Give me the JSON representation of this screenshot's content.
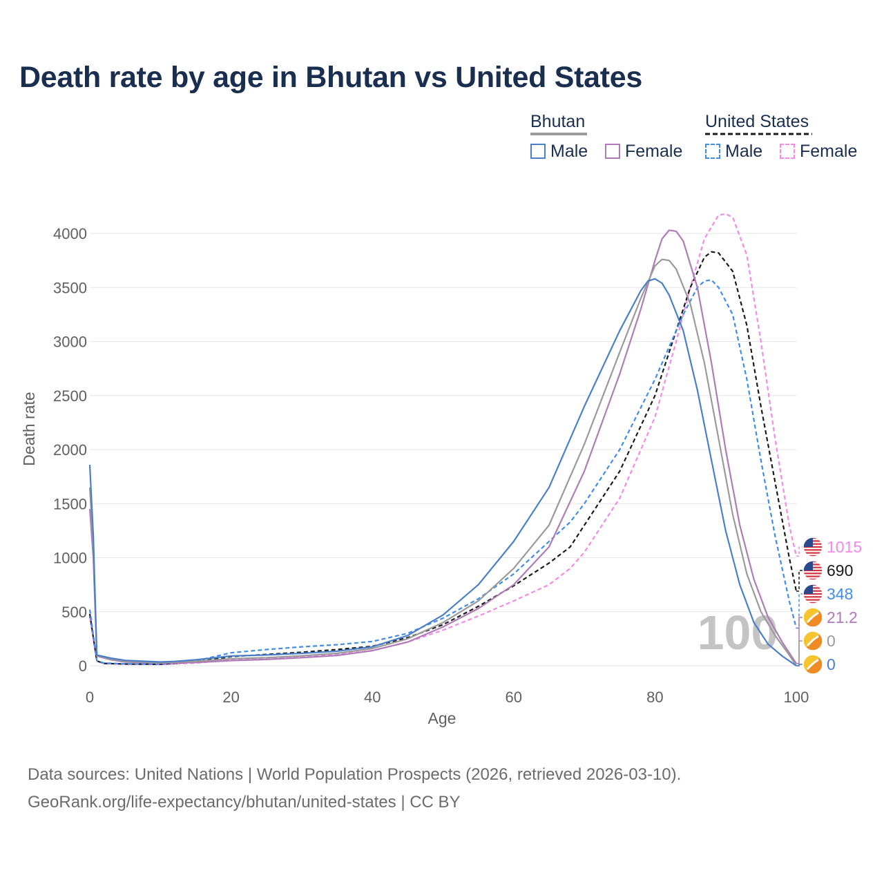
{
  "title": "Death rate by age in Bhutan vs United States",
  "legend": {
    "groups": [
      {
        "name": "Bhutan",
        "items": [
          {
            "label": "Male",
            "color": "#4a7fc8",
            "dashed": false
          },
          {
            "label": "Female",
            "color": "#b07ab8",
            "dashed": false
          }
        ]
      },
      {
        "name": "United States",
        "items": [
          {
            "label": "Male",
            "color": "#3f8cea",
            "dashed": true
          },
          {
            "label": "Female",
            "color": "#f28ae8",
            "dashed": true
          }
        ]
      }
    ]
  },
  "colors": {
    "bhutan_male": "#4a7fc8",
    "bhutan_female": "#b07ab8",
    "bhutan_total": "#9a9a9a",
    "us_male": "#3f8cea",
    "us_female": "#f28ae8",
    "us_total": "#1a1a1a",
    "title": "#1a2e50"
  },
  "icons": {
    "us_flag": "us-flag-icon",
    "bhutan_flag": "bhutan-flag-icon"
  },
  "watermark": "100",
  "source_line1": "Data sources: United Nations | World Population Prospects (2026, retrieved 2026-03-10).",
  "source_line2": "GeoRank.org/life-expectancy/bhutan/united-states | CC BY",
  "chart_data": {
    "type": "line",
    "title": "Death rate by age in Bhutan vs United States",
    "xlabel": "Age",
    "ylabel": "Death rate",
    "xlim": [
      0,
      100
    ],
    "ylim": [
      0,
      4000
    ],
    "xticks": [
      0,
      20,
      40,
      60,
      80,
      100
    ],
    "yticks": [
      0,
      500,
      1000,
      1500,
      2000,
      2500,
      3000,
      3500,
      4000
    ],
    "grid": true,
    "legend_position": "top-right",
    "series": [
      {
        "key": "us_female",
        "name": "United States Female",
        "color": "#f28ae8",
        "dashed": true,
        "flag": "us",
        "end_label": "1015",
        "points": [
          [
            0,
            450
          ],
          [
            1,
            45
          ],
          [
            2,
            20
          ],
          [
            5,
            15
          ],
          [
            10,
            12
          ],
          [
            15,
            25
          ],
          [
            20,
            55
          ],
          [
            25,
            68
          ],
          [
            30,
            85
          ],
          [
            35,
            105
          ],
          [
            40,
            140
          ],
          [
            45,
            220
          ],
          [
            50,
            330
          ],
          [
            55,
            460
          ],
          [
            60,
            600
          ],
          [
            65,
            750
          ],
          [
            68,
            900
          ],
          [
            70,
            1050
          ],
          [
            75,
            1550
          ],
          [
            80,
            2300
          ],
          [
            83,
            3000
          ],
          [
            85,
            3500
          ],
          [
            87,
            3950
          ],
          [
            89,
            4170
          ],
          [
            90,
            4180
          ],
          [
            91,
            4150
          ],
          [
            93,
            3800
          ],
          [
            95,
            3000
          ],
          [
            97,
            2100
          ],
          [
            99,
            1300
          ],
          [
            100,
            1015
          ]
        ]
      },
      {
        "key": "us_total",
        "name": "United States Total",
        "color": "#1a1a1a",
        "dashed": true,
        "flag": "us",
        "end_label": "690",
        "points": [
          [
            0,
            480
          ],
          [
            1,
            45
          ],
          [
            2,
            22
          ],
          [
            5,
            16
          ],
          [
            10,
            14
          ],
          [
            15,
            35
          ],
          [
            20,
            85
          ],
          [
            25,
            105
          ],
          [
            30,
            125
          ],
          [
            35,
            150
          ],
          [
            40,
            180
          ],
          [
            45,
            260
          ],
          [
            50,
            380
          ],
          [
            55,
            550
          ],
          [
            60,
            740
          ],
          [
            65,
            950
          ],
          [
            68,
            1100
          ],
          [
            70,
            1300
          ],
          [
            75,
            1800
          ],
          [
            80,
            2500
          ],
          [
            83,
            3100
          ],
          [
            85,
            3500
          ],
          [
            87,
            3780
          ],
          [
            88,
            3830
          ],
          [
            89,
            3820
          ],
          [
            91,
            3650
          ],
          [
            93,
            3150
          ],
          [
            95,
            2400
          ],
          [
            97,
            1700
          ],
          [
            99,
            1000
          ],
          [
            100,
            690
          ]
        ]
      },
      {
        "key": "us_male",
        "name": "United States Male",
        "color": "#3f8cea",
        "dashed": true,
        "flag": "us",
        "end_label": "348",
        "points": [
          [
            0,
            520
          ],
          [
            1,
            48
          ],
          [
            2,
            25
          ],
          [
            5,
            18
          ],
          [
            10,
            16
          ],
          [
            15,
            45
          ],
          [
            20,
            120
          ],
          [
            25,
            150
          ],
          [
            30,
            175
          ],
          [
            35,
            195
          ],
          [
            40,
            225
          ],
          [
            45,
            300
          ],
          [
            50,
            440
          ],
          [
            55,
            620
          ],
          [
            60,
            850
          ],
          [
            65,
            1150
          ],
          [
            68,
            1330
          ],
          [
            70,
            1500
          ],
          [
            75,
            2000
          ],
          [
            80,
            2650
          ],
          [
            84,
            3250
          ],
          [
            86,
            3500
          ],
          [
            87,
            3560
          ],
          [
            88,
            3570
          ],
          [
            89,
            3500
          ],
          [
            91,
            3250
          ],
          [
            93,
            2650
          ],
          [
            95,
            1900
          ],
          [
            97,
            1200
          ],
          [
            99,
            600
          ],
          [
            100,
            348
          ]
        ]
      },
      {
        "key": "bhutan_female",
        "name": "Bhutan Female",
        "color": "#b07ab8",
        "dashed": false,
        "flag": "bhutan",
        "end_label": "21.2",
        "points": [
          [
            0,
            1450
          ],
          [
            0.5,
            1000
          ],
          [
            1,
            90
          ],
          [
            3,
            55
          ],
          [
            5,
            35
          ],
          [
            10,
            25
          ],
          [
            15,
            30
          ],
          [
            20,
            48
          ],
          [
            25,
            58
          ],
          [
            30,
            75
          ],
          [
            35,
            95
          ],
          [
            40,
            140
          ],
          [
            45,
            220
          ],
          [
            50,
            360
          ],
          [
            55,
            530
          ],
          [
            60,
            750
          ],
          [
            65,
            1100
          ],
          [
            70,
            1800
          ],
          [
            75,
            2700
          ],
          [
            78,
            3300
          ],
          [
            80,
            3750
          ],
          [
            81,
            3950
          ],
          [
            82,
            4030
          ],
          [
            83,
            4020
          ],
          [
            84,
            3930
          ],
          [
            86,
            3500
          ],
          [
            88,
            2800
          ],
          [
            90,
            2000
          ],
          [
            92,
            1300
          ],
          [
            94,
            800
          ],
          [
            96,
            450
          ],
          [
            98,
            220
          ],
          [
            99,
            120
          ],
          [
            100,
            21.2
          ]
        ]
      },
      {
        "key": "bhutan_total",
        "name": "Bhutan Total",
        "color": "#9a9a9a",
        "dashed": false,
        "flag": "bhutan",
        "end_label": "0",
        "points": [
          [
            0,
            1650
          ],
          [
            0.5,
            1100
          ],
          [
            1,
            95
          ],
          [
            3,
            60
          ],
          [
            5,
            40
          ],
          [
            10,
            28
          ],
          [
            15,
            40
          ],
          [
            20,
            65
          ],
          [
            25,
            75
          ],
          [
            30,
            92
          ],
          [
            35,
            115
          ],
          [
            40,
            160
          ],
          [
            45,
            250
          ],
          [
            50,
            400
          ],
          [
            55,
            600
          ],
          [
            60,
            900
          ],
          [
            65,
            1300
          ],
          [
            70,
            2050
          ],
          [
            75,
            2900
          ],
          [
            78,
            3400
          ],
          [
            80,
            3700
          ],
          [
            81,
            3760
          ],
          [
            82,
            3750
          ],
          [
            83,
            3670
          ],
          [
            85,
            3350
          ],
          [
            87,
            2800
          ],
          [
            89,
            2100
          ],
          [
            91,
            1400
          ],
          [
            93,
            850
          ],
          [
            95,
            500
          ],
          [
            97,
            280
          ],
          [
            99,
            100
          ],
          [
            100,
            0
          ]
        ]
      },
      {
        "key": "bhutan_male",
        "name": "Bhutan Male",
        "color": "#4a7fc8",
        "dashed": false,
        "flag": "bhutan",
        "end_label": "0",
        "points": [
          [
            0,
            1860
          ],
          [
            0.5,
            1200
          ],
          [
            1,
            100
          ],
          [
            3,
            70
          ],
          [
            5,
            50
          ],
          [
            10,
            35
          ],
          [
            12,
            40
          ],
          [
            15,
            55
          ],
          [
            20,
            90
          ],
          [
            25,
            100
          ],
          [
            30,
            115
          ],
          [
            35,
            135
          ],
          [
            40,
            175
          ],
          [
            45,
            280
          ],
          [
            50,
            470
          ],
          [
            55,
            750
          ],
          [
            60,
            1150
          ],
          [
            65,
            1650
          ],
          [
            70,
            2400
          ],
          [
            75,
            3100
          ],
          [
            78,
            3470
          ],
          [
            79,
            3560
          ],
          [
            80,
            3580
          ],
          [
            81,
            3540
          ],
          [
            82,
            3430
          ],
          [
            84,
            3100
          ],
          [
            86,
            2550
          ],
          [
            88,
            1900
          ],
          [
            90,
            1250
          ],
          [
            92,
            750
          ],
          [
            94,
            400
          ],
          [
            96,
            200
          ],
          [
            98,
            90
          ],
          [
            100,
            0
          ]
        ]
      }
    ]
  }
}
